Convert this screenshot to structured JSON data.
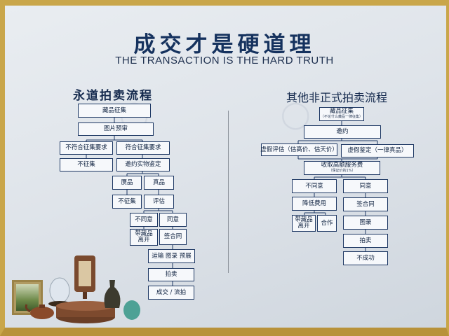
{
  "title": "成交才是硬道理",
  "subtitle": "THE TRANSACTION IS THE HARD TRUTH",
  "left_flow": {
    "title": "永道拍卖流程",
    "boxes": {
      "collect": "藏品征集",
      "preview": "图片预审",
      "not_meet": "不符合征集要求",
      "meet": "符合征集要求",
      "not_collect": "不征集",
      "invite_appraisal": "邀约实物鉴定",
      "fake": "赝品",
      "genuine": "真品",
      "not_collect_2": "不征集",
      "evaluate": "评估",
      "disagree": "不同意",
      "agree": "同意",
      "take_away": "带藏品离开",
      "sign": "签合同",
      "ship": "运输  图录  预展",
      "auction": "拍卖",
      "result": "成交 / 流拍"
    }
  },
  "right_flow": {
    "title": "其他非正式拍卖流程",
    "boxes": {
      "collect": "藏品征集",
      "collect_note": "（不论什么藏品一律征集）",
      "invite": "邀约",
      "false_eval": "虚假评估（估高价、估天价）",
      "false_appraisal": "虚假鉴定（一律真品）",
      "fee": "收取高额服务费",
      "fee_note": "（保证价的1%）",
      "disagree": "不同意",
      "agree": "同意",
      "reduce_fee": "降低费用",
      "sign": "签合同",
      "take_away": "带藏品离开",
      "cooperate": "合作",
      "catalog": "图录",
      "auction": "拍卖",
      "fail": "不成功"
    }
  }
}
